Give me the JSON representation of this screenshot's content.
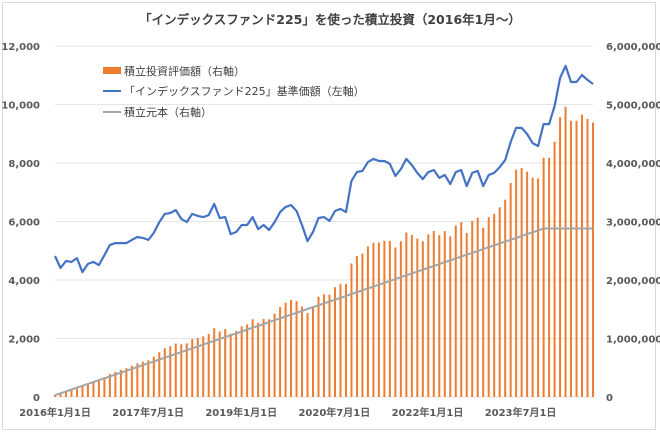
{
  "chart_data": {
    "type": "bar+line",
    "title": "「インデックスファンド225」を使った積立投資（2016年1月～）",
    "colors": {
      "evaluation": "#ED7D31",
      "price": "#4472C4",
      "principal": "#A5A5A5",
      "grid": "#E5E5E5"
    },
    "x_ticks": [
      {
        "label": "2016年1月1日",
        "month": 0
      },
      {
        "label": "2017年7月1日",
        "month": 18
      },
      {
        "label": "2019年1月1日",
        "month": 36
      },
      {
        "label": "2020年7月1日",
        "month": 54
      },
      {
        "label": "2022年1月1日",
        "month": 72
      },
      {
        "label": "2023年7月1日",
        "month": 90
      }
    ],
    "x_month_span": 104,
    "left_axis": {
      "min": 0,
      "max": 12000,
      "ticks": [
        "0",
        "2,000",
        "4,000",
        "6,000",
        "8,000",
        "10,000",
        "12,000"
      ]
    },
    "right_axis": {
      "min": 0,
      "max": 6000000,
      "ticks": [
        "0",
        "1,000,000",
        "2,000,000",
        "3,000,000",
        "4,000,000",
        "5,000,000",
        "6,000,000"
      ]
    },
    "legend": [
      {
        "label": "積立投資評価額（右軸）",
        "kind": "bar",
        "key": "evaluation"
      },
      {
        "label": "「インデックスファンド225」基準価額（左軸）",
        "kind": "line",
        "key": "price"
      },
      {
        "label": "積立元本（右軸）",
        "kind": "line",
        "key": "principal"
      }
    ],
    "series": [
      {
        "name": "積立投資評価額（右軸）",
        "axis": "right",
        "type": "bar",
        "values": [
          32000,
          61000,
          97000,
          128000,
          163000,
          179000,
          222000,
          258000,
          284000,
          337000,
          393000,
          430000,
          462000,
          493000,
          535000,
          576000,
          605000,
          629000,
          689000,
          765000,
          833000,
          868000,
          913000,
          901000,
          916000,
          990000,
          1011000,
          1036000,
          1079000,
          1176000,
          1122000,
          1160000,
          1081000,
          1128000,
          1208000,
          1241000,
          1329000,
          1271000,
          1334000,
          1329000,
          1424000,
          1536000,
          1612000,
          1658000,
          1638000,
          1546000,
          1434000,
          1550000,
          1714000,
          1754000,
          1748000,
          1876000,
          1930000,
          1930000,
          2283000,
          2409000,
          2452000,
          2574000,
          2636000,
          2640000,
          2670000,
          2666000,
          2557000,
          2663000,
          2812000,
          2768000,
          2706000,
          2662000,
          2779000,
          2836000,
          2767000,
          2834000,
          2747000,
          2932000,
          2990000,
          2805000,
          3010000,
          3067000,
          2893000,
          3074000,
          3131000,
          3243000,
          3372000,
          3657000,
          3886000,
          3913000,
          3851000,
          3749000,
          3736000,
          4090000,
          4090000,
          4362000,
          4783000,
          4962000,
          4721000,
          4721000,
          4826000,
          4752000,
          4690000
        ]
      },
      {
        "name": "「インデックスファンド225」基準価額（左軸）",
        "axis": "left",
        "type": "line",
        "values": [
          4820,
          4410,
          4650,
          4620,
          4750,
          4270,
          4550,
          4620,
          4510,
          4850,
          5200,
          5260,
          5260,
          5260,
          5370,
          5470,
          5440,
          5370,
          5610,
          5980,
          6260,
          6290,
          6390,
          6090,
          5980,
          6260,
          6190,
          6150,
          6220,
          6600,
          6120,
          6150,
          5570,
          5640,
          5880,
          5880,
          6150,
          5740,
          5880,
          5710,
          5980,
          6320,
          6500,
          6560,
          6360,
          5880,
          5330,
          5640,
          6120,
          6150,
          6020,
          6360,
          6430,
          6320,
          7380,
          7690,
          7730,
          8030,
          8140,
          8070,
          8070,
          7970,
          7560,
          7790,
          8140,
          7930,
          7660,
          7450,
          7690,
          7760,
          7490,
          7590,
          7280,
          7690,
          7760,
          7210,
          7660,
          7730,
          7210,
          7590,
          7660,
          7860,
          8100,
          8720,
          9200,
          9200,
          8990,
          8680,
          8580,
          9330,
          9330,
          9950,
          10910,
          11320,
          10770,
          10770,
          11010,
          10840,
          10700
        ]
      },
      {
        "name": "積立元本（右軸）",
        "axis": "right",
        "type": "line",
        "monthly_contribution": 32000,
        "cap": 2880000
      }
    ]
  }
}
